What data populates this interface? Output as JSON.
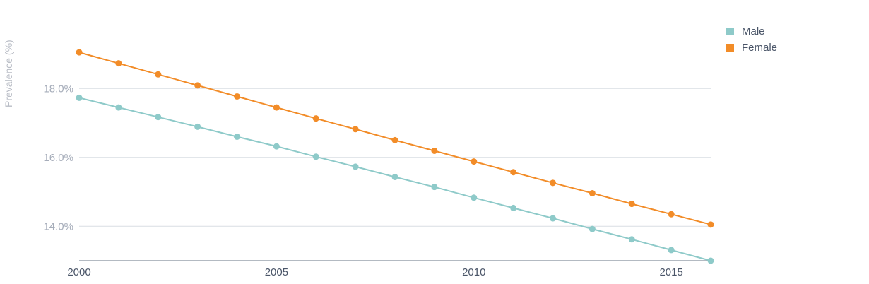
{
  "chart_data": {
    "type": "line",
    "title": "",
    "xlabel": "",
    "ylabel": "Prevalence (%)",
    "x": [
      2000,
      2001,
      2002,
      2003,
      2004,
      2005,
      2006,
      2007,
      2008,
      2009,
      2010,
      2011,
      2012,
      2013,
      2014,
      2015,
      2016
    ],
    "xticks": [
      2000,
      2005,
      2010,
      2015
    ],
    "yticks": [
      {
        "value": 14,
        "label": "14.0%"
      },
      {
        "value": 16,
        "label": "16.0%"
      },
      {
        "value": 18,
        "label": "18.0%"
      }
    ],
    "xlim": [
      2000,
      2016
    ],
    "ylim": [
      13,
      19.4
    ],
    "grid": true,
    "legend": "top-right",
    "series": [
      {
        "name": "Male",
        "color": "#8ecac9",
        "values": [
          17.73,
          17.45,
          17.17,
          16.89,
          16.6,
          16.32,
          16.02,
          15.73,
          15.43,
          15.14,
          14.83,
          14.53,
          14.23,
          13.92,
          13.62,
          13.31,
          13.0
        ]
      },
      {
        "name": "Female",
        "color": "#f28c28",
        "values": [
          19.05,
          18.73,
          18.41,
          18.09,
          17.77,
          17.45,
          17.13,
          16.82,
          16.5,
          16.19,
          15.88,
          15.57,
          15.26,
          14.96,
          14.65,
          14.35,
          14.05
        ]
      }
    ]
  }
}
